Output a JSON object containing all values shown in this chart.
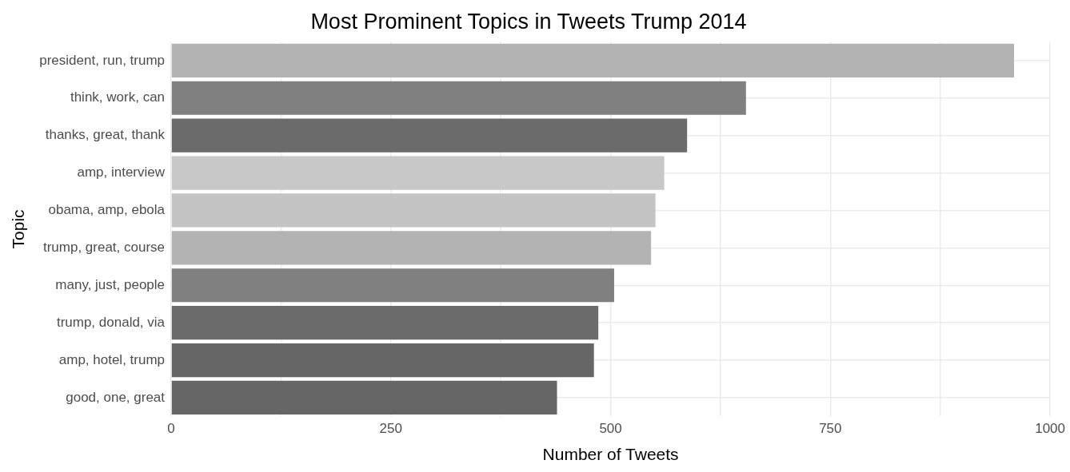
{
  "chart_data": {
    "type": "bar",
    "orientation": "horizontal",
    "title": "Most Prominent Topics in Tweets Trump 2014",
    "xlabel": "Number of Tweets",
    "ylabel": "Topic",
    "categories": [
      "president, run, trump",
      "think, work, can",
      "thanks, great, thank",
      "amp, interview",
      "obama, amp, ebola",
      "trump, great, course",
      "many, just, people",
      "trump, donald, via",
      "amp, hotel, trump",
      "good, one, great"
    ],
    "values": [
      959,
      654,
      587,
      561,
      551,
      546,
      504,
      486,
      481,
      439
    ],
    "colors": [
      "#b3b3b3",
      "#808080",
      "#6b6b6b",
      "#c8c8c8",
      "#c4c4c4",
      "#b3b3b3",
      "#808080",
      "#6b6b6b",
      "#666666",
      "#666666"
    ],
    "xlim": [
      0,
      1000
    ],
    "xticks": [
      0,
      {
        "value": 125,
        "label": null
      },
      250,
      {
        "value": 375,
        "label": null
      },
      500,
      {
        "value": 625,
        "label": null
      },
      750,
      {
        "value": 875,
        "label": null
      },
      1000
    ],
    "grid": true,
    "legend": false
  }
}
